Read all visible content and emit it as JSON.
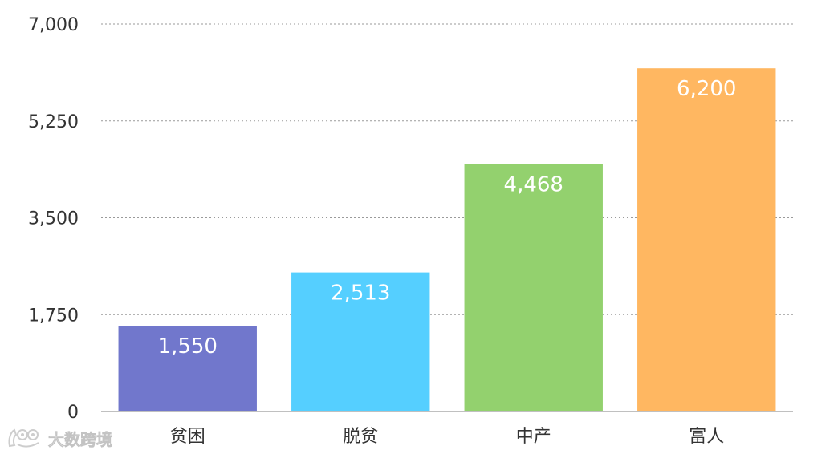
{
  "chart_data": {
    "type": "bar",
    "title": "",
    "xlabel": "",
    "ylabel": "",
    "categories": [
      "贫困",
      "脱贫",
      "中产",
      "富人"
    ],
    "values": [
      1550,
      2513,
      4468,
      6200
    ],
    "value_labels": [
      "1,550",
      "2,513",
      "4,468",
      "6,200"
    ],
    "colors": [
      "#7177cc",
      "#55cfff",
      "#93d16e",
      "#ffb761"
    ],
    "ylim": [
      0,
      7000
    ],
    "y_ticks": [
      0,
      1750,
      3500,
      5250,
      7000
    ],
    "y_tick_labels": [
      "0",
      "1,750",
      "3,500",
      "5,250",
      "7,000"
    ],
    "grid": "horizontal dotted",
    "legend": "none"
  },
  "watermark": {
    "text": "大数跨境",
    "icon": "cat-logo-icon"
  }
}
